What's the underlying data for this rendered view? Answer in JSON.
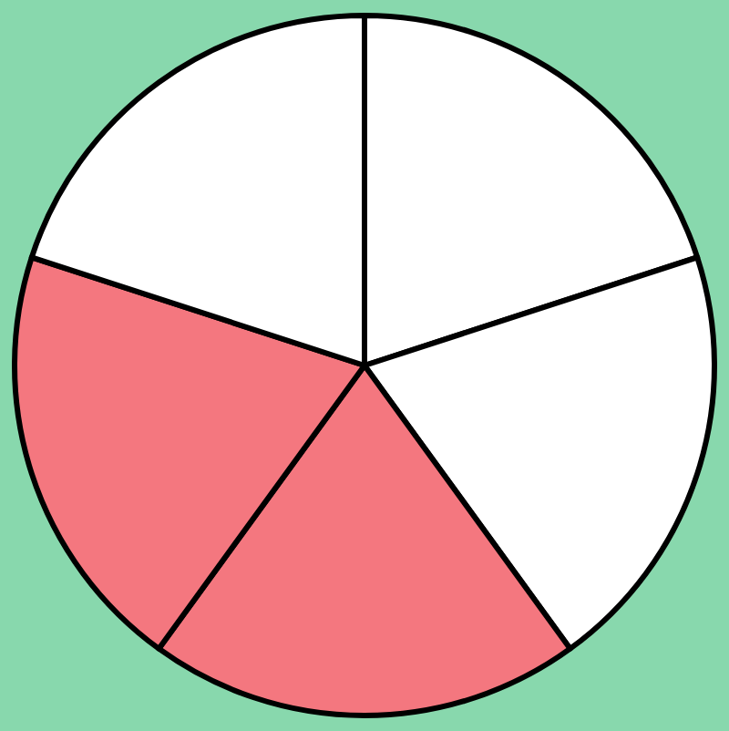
{
  "chart_data": {
    "type": "pie",
    "categories": [
      null,
      null,
      null,
      null,
      null
    ],
    "values": [
      20,
      20,
      20,
      20,
      20
    ],
    "colors": [
      "#ffffff",
      "#ffffff",
      "#f4777f",
      "#f4777f",
      "#ffffff"
    ],
    "legend": false
  }
}
